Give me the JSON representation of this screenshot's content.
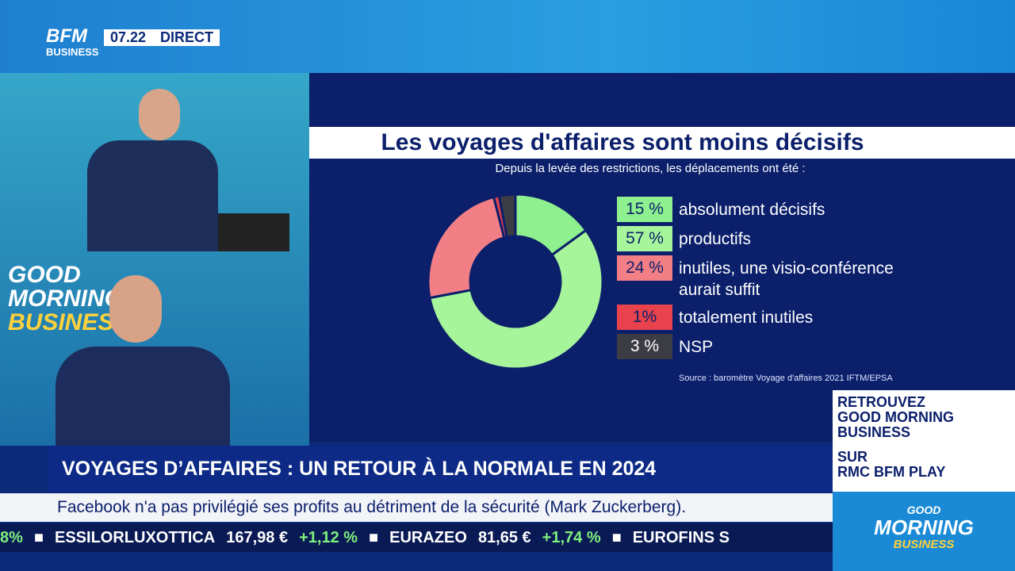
{
  "broadcast": {
    "logo_top": "BFM",
    "logo_bottom": "BUSINESS",
    "time": "07.22",
    "live": "DIRECT",
    "show_logo": [
      "GOOD",
      "MORNING",
      "BUSINESS"
    ],
    "headline": "VOYAGES D’AFFAIRES : UN RETOUR À LA NORMALE EN 2024",
    "news_ticker": "Facebook n'a pas privilégié ses profits au détriment de la sécurité (Mark Zuckerberg).",
    "stocks": [
      {
        "change": "8%"
      },
      {
        "name": "ESSILORLUXOTTICA",
        "price": "167,98 €",
        "change": "+1,12 %"
      },
      {
        "name": "EURAZEO",
        "price": "81,65 €",
        "change": "+1,74 %"
      },
      {
        "name": "EUROFINS S"
      }
    ],
    "promo": [
      "RETROUVEZ",
      "GOOD MORNING",
      "BUSINESS",
      "SUR",
      "RMC BFM PLAY"
    ]
  },
  "chart_data": {
    "type": "pie",
    "donut": true,
    "title": "Les voyages d'affaires sont moins décisifs",
    "subtitle": "Depuis la levée des restrictions, les déplacements ont été :",
    "categories": [
      "absolument décisifs",
      "productifs",
      "inutiles, une visio-conférence aurait suffit",
      "totalement inutiles",
      "NSP"
    ],
    "values": [
      15,
      57,
      24,
      1,
      3
    ],
    "value_labels": [
      "15 %",
      "57 %",
      "24 %",
      "1%",
      "3 %"
    ],
    "colors": [
      "#8ef08e",
      "#a6f59a",
      "#f27f86",
      "#e8424c",
      "#3c3c44"
    ],
    "source": "Source : baromètre Voyage d'affaires 2021 IFTM/EPSA"
  }
}
